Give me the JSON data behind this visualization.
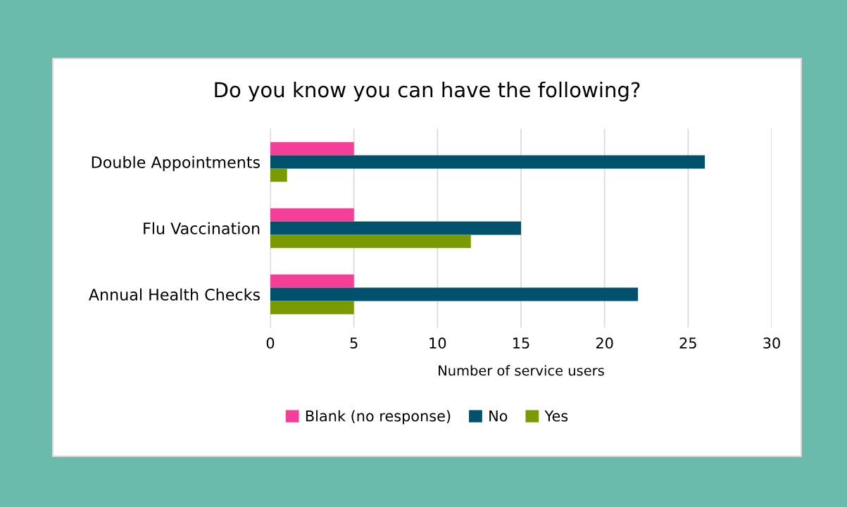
{
  "chart_data": {
    "type": "bar",
    "orientation": "horizontal",
    "title": "Do you know you can have the following?",
    "xlabel": "Number of service users",
    "categories": [
      "Double Appointments",
      "Flu Vaccination",
      "Annual Health Checks"
    ],
    "series": [
      {
        "name": "Blank (no response)",
        "color": "#f33f97",
        "values": [
          5,
          5,
          5
        ]
      },
      {
        "name": "No",
        "color": "#00516b",
        "values": [
          26,
          15,
          22
        ]
      },
      {
        "name": "Yes",
        "color": "#7a9a01",
        "values": [
          1,
          12,
          5
        ]
      }
    ],
    "xlim": [
      0,
      30
    ],
    "xticks": [
      0,
      5,
      10,
      15,
      20,
      25,
      30
    ],
    "grid": "x",
    "legend": "bottom"
  }
}
